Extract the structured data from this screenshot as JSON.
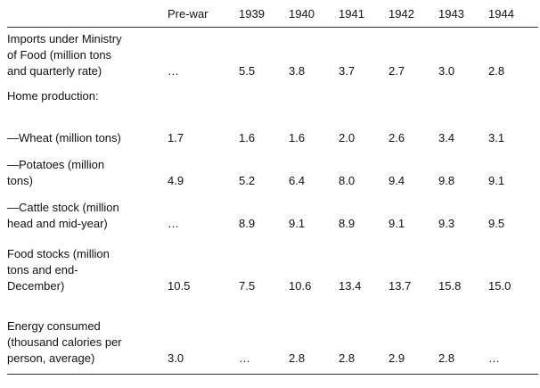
{
  "columns": [
    "Pre-war",
    "1939",
    "1940",
    "1941",
    "1942",
    "1943",
    "1944"
  ],
  "rows": [
    {
      "label_lines": [
        "Imports under Ministry",
        "of Food (million tons",
        "and quarterly rate)"
      ],
      "values": [
        "…",
        "5.5",
        "3.8",
        "3.7",
        "2.7",
        "3.0",
        "2.8"
      ]
    },
    {
      "label_lines": [
        "Home production:"
      ],
      "values": [
        "",
        "",
        "",
        "",
        "",
        "",
        ""
      ]
    },
    {
      "label_lines": [
        "—Wheat (million tons)"
      ],
      "values": [
        "1.7",
        "1.6",
        "1.6",
        "2.0",
        "2.6",
        "3.4",
        "3.1"
      ]
    },
    {
      "label_lines": [
        "—Potatoes (million",
        "tons)"
      ],
      "values": [
        "4.9",
        "5.2",
        "6.4",
        "8.0",
        "9.4",
        "9.8",
        "9.1"
      ]
    },
    {
      "label_lines": [
        "—Cattle stock (million",
        "head and mid-year)"
      ],
      "values": [
        "…",
        "8.9",
        "9.1",
        "8.9",
        "9.1",
        "9.3",
        "9.5"
      ]
    },
    {
      "label_lines": [
        "Food stocks (million",
        "tons and end-",
        "December)"
      ],
      "values": [
        "10.5",
        "7.5",
        "10.6",
        "13.4",
        "13.7",
        "15.8",
        "15.0"
      ]
    },
    {
      "label_lines": [
        "Energy consumed",
        "(thousand calories per",
        "person, average)"
      ],
      "values": [
        "3.0",
        "…",
        "2.8",
        "2.8",
        "2.9",
        "2.8",
        "…"
      ]
    }
  ]
}
